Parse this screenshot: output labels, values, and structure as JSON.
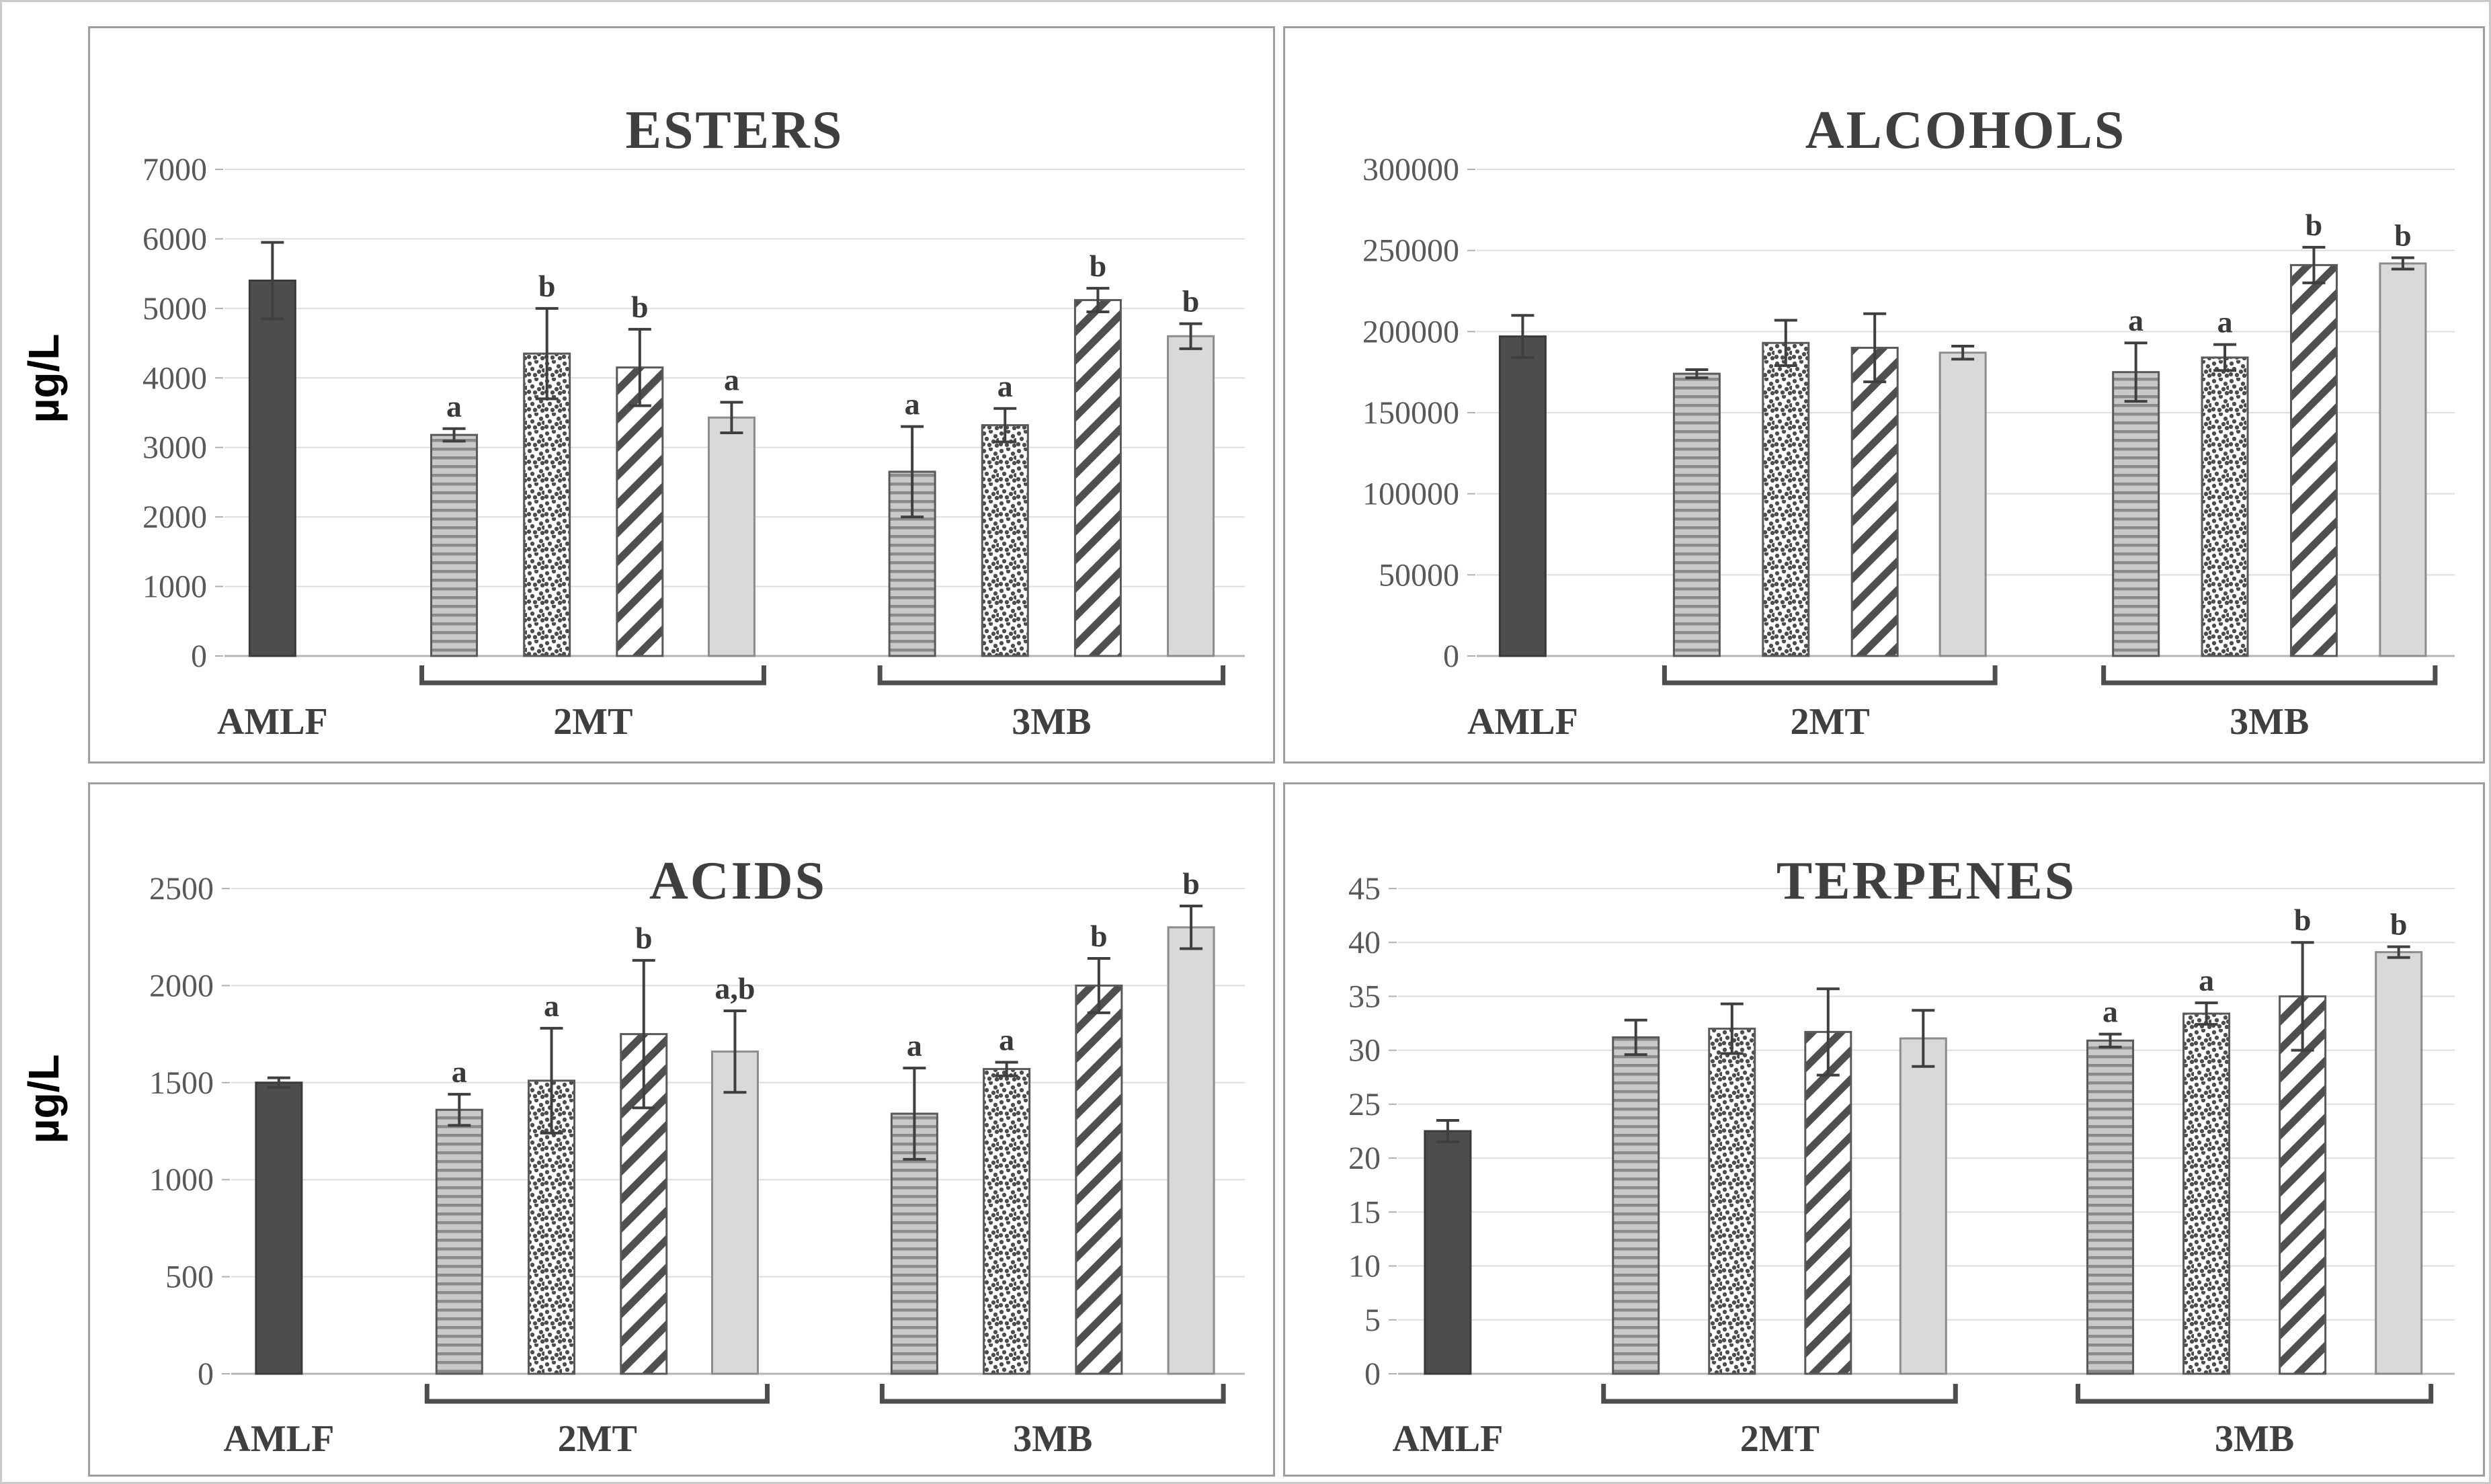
{
  "figure": {
    "background": "#ffffff",
    "panel_border_color": "#9e9e9e",
    "gridline_color": "#dedede",
    "axis_line_color": "#b5b5b5",
    "tick_label_color": "#595959",
    "title_color": "#3f3f3f",
    "letter_color": "#3a3a3a",
    "error_bar_color": "#3f3f3f",
    "bracket_color": "#4d4d4d"
  },
  "row_labels": [
    {
      "text": "µg/L"
    },
    {
      "text": "µg/L"
    }
  ],
  "bar_styles": {
    "solid_dark": {
      "name": "solid dark gray bar",
      "fill": "#4d4d4d",
      "stroke": "#3a3a3a"
    },
    "h_lines": {
      "name": "horizontal lines pattern",
      "bg": "#c9c9c9",
      "line": "#8a8a8a",
      "stroke": "#595959"
    },
    "dots": {
      "name": "speckled dots pattern",
      "bg": "#ffffff",
      "dot": "#4d4d4d",
      "stroke": "#595959"
    },
    "diag_stripes": {
      "name": "diagonal stripes pattern",
      "bg": "#ffffff",
      "stripe": "#4f4f4f",
      "stroke": "#595959"
    },
    "solid_light": {
      "name": "solid light gray bar",
      "fill": "#d9d9d9",
      "stroke": "#8c8c8c"
    }
  },
  "chart_data": [
    {
      "type": "bar",
      "title": "ESTERS",
      "ylabel": "µg/L",
      "ylim": [
        0,
        7000
      ],
      "ytick_step": 1000,
      "grid": true,
      "legend": "none",
      "groups": [
        {
          "label": "AMLF",
          "bracket": false,
          "bars": [
            {
              "style": "solid_dark",
              "value": 5400,
              "err": 550,
              "letter": ""
            }
          ]
        },
        {
          "label": "2MT",
          "bracket": true,
          "bars": [
            {
              "style": "h_lines",
              "value": 3180,
              "err": 90,
              "letter": "a"
            },
            {
              "style": "dots",
              "value": 4350,
              "err": 650,
              "letter": "b"
            },
            {
              "style": "diag_stripes",
              "value": 4150,
              "err": 550,
              "letter": "b"
            },
            {
              "style": "solid_light",
              "value": 3430,
              "err": 220,
              "letter": "a"
            }
          ]
        },
        {
          "label": "3MB",
          "bracket": true,
          "bars": [
            {
              "style": "h_lines",
              "value": 2650,
              "err": 650,
              "letter": "a"
            },
            {
              "style": "dots",
              "value": 3320,
              "err": 240,
              "letter": "a"
            },
            {
              "style": "diag_stripes",
              "value": 5120,
              "err": 170,
              "letter": "b"
            },
            {
              "style": "solid_light",
              "value": 4600,
              "err": 180,
              "letter": "b"
            }
          ]
        }
      ]
    },
    {
      "type": "bar",
      "title": "ALCOHOLS",
      "ylabel": "µg/L",
      "ylim": [
        0,
        300000
      ],
      "ytick_step": 50000,
      "grid": true,
      "legend": "none",
      "groups": [
        {
          "label": "AMLF",
          "bracket": false,
          "bars": [
            {
              "style": "solid_dark",
              "value": 197000,
              "err": 13000,
              "letter": ""
            }
          ]
        },
        {
          "label": "2MT",
          "bracket": true,
          "bars": [
            {
              "style": "h_lines",
              "value": 174000,
              "err": 2500,
              "letter": ""
            },
            {
              "style": "dots",
              "value": 193000,
              "err": 14000,
              "letter": ""
            },
            {
              "style": "diag_stripes",
              "value": 190000,
              "err": 21000,
              "letter": ""
            },
            {
              "style": "solid_light",
              "value": 187000,
              "err": 4000,
              "letter": ""
            }
          ]
        },
        {
          "label": "3MB",
          "bracket": true,
          "bars": [
            {
              "style": "h_lines",
              "value": 175000,
              "err": 18000,
              "letter": "a"
            },
            {
              "style": "dots",
              "value": 184000,
              "err": 8000,
              "letter": "a"
            },
            {
              "style": "diag_stripes",
              "value": 241000,
              "err": 11000,
              "letter": "b"
            },
            {
              "style": "solid_light",
              "value": 242000,
              "err": 3500,
              "letter": "b"
            }
          ]
        }
      ]
    },
    {
      "type": "bar",
      "title": "ACIDS",
      "ylabel": "µg/L",
      "ylim": [
        0,
        2500
      ],
      "ytick_step": 500,
      "grid": true,
      "legend": "none",
      "groups": [
        {
          "label": "AMLF",
          "bracket": false,
          "bars": [
            {
              "style": "solid_dark",
              "value": 1500,
              "err": 25,
              "letter": ""
            }
          ]
        },
        {
          "label": "2MT",
          "bracket": true,
          "bars": [
            {
              "style": "h_lines",
              "value": 1360,
              "err": 80,
              "letter": "a"
            },
            {
              "style": "dots",
              "value": 1510,
              "err": 270,
              "letter": "a"
            },
            {
              "style": "diag_stripes",
              "value": 1750,
              "err": 380,
              "letter": "b"
            },
            {
              "style": "solid_light",
              "value": 1660,
              "err": 210,
              "letter": "a,b"
            }
          ]
        },
        {
          "label": "3MB",
          "bracket": true,
          "bars": [
            {
              "style": "h_lines",
              "value": 1340,
              "err": 235,
              "letter": "a"
            },
            {
              "style": "dots",
              "value": 1570,
              "err": 35,
              "letter": "a"
            },
            {
              "style": "diag_stripes",
              "value": 2000,
              "err": 140,
              "letter": "b"
            },
            {
              "style": "solid_light",
              "value": 2300,
              "err": 110,
              "letter": "b"
            }
          ]
        }
      ]
    },
    {
      "type": "bar",
      "title": "TERPENES",
      "ylabel": "µg/L",
      "ylim": [
        0,
        45
      ],
      "ytick_step": 5,
      "grid": true,
      "legend": "none",
      "groups": [
        {
          "label": "AMLF",
          "bracket": false,
          "bars": [
            {
              "style": "solid_dark",
              "value": 22.5,
              "err": 1,
              "letter": ""
            }
          ]
        },
        {
          "label": "2MT",
          "bracket": true,
          "bars": [
            {
              "style": "h_lines",
              "value": 31.2,
              "err": 1.6,
              "letter": ""
            },
            {
              "style": "dots",
              "value": 32,
              "err": 2.3,
              "letter": ""
            },
            {
              "style": "diag_stripes",
              "value": 31.7,
              "err": 4,
              "letter": ""
            },
            {
              "style": "solid_light",
              "value": 31.1,
              "err": 2.6,
              "letter": ""
            }
          ]
        },
        {
          "label": "3MB",
          "bracket": true,
          "bars": [
            {
              "style": "h_lines",
              "value": 30.9,
              "err": 0.6,
              "letter": "a"
            },
            {
              "style": "dots",
              "value": 33.4,
              "err": 1,
              "letter": "a"
            },
            {
              "style": "diag_stripes",
              "value": 35,
              "err": 5,
              "letter": "b"
            },
            {
              "style": "solid_light",
              "value": 39.1,
              "err": 0.5,
              "letter": "b"
            }
          ]
        }
      ]
    }
  ]
}
